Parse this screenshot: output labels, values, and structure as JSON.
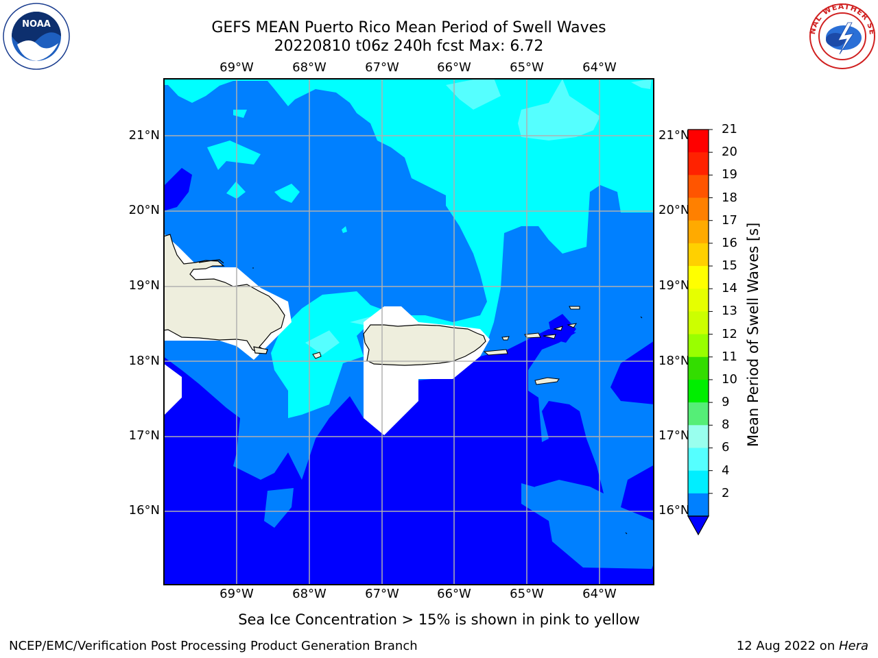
{
  "header": {
    "title_line1": "GEFS MEAN Puerto Rico Mean Period of Swell Waves",
    "title_line2": "20220810 t06z 240h fcst   Max: 6.72"
  },
  "logos": {
    "left": "NOAA",
    "right": "NATIONAL WEATHER SERVICE"
  },
  "map": {
    "lon_labels": [
      "69°W",
      "68°W",
      "67°W",
      "66°W",
      "65°W",
      "64°W"
    ],
    "lat_labels": [
      "21°N",
      "20°N",
      "19°N",
      "18°N",
      "17°N",
      "16°N"
    ]
  },
  "colorbar": {
    "title": "Mean Period of Swell Waves [s]",
    "labels": [
      "21",
      "20",
      "19",
      "18",
      "17",
      "16",
      "15",
      "14",
      "13",
      "12",
      "11",
      "10",
      "9",
      "8",
      "6",
      "4",
      "2"
    ],
    "colors": [
      "#ff0000",
      "#ff2200",
      "#ff5500",
      "#ff8000",
      "#ffaa00",
      "#ffd000",
      "#ffff00",
      "#e6ff00",
      "#ccff00",
      "#99ff00",
      "#33dd00",
      "#00ee00",
      "#55ee77",
      "#99ffee",
      "#55ffff",
      "#00eeff",
      "#0080ff"
    ],
    "extend_color": "#0000ff"
  },
  "legend_note": "Sea Ice Concentration > 15% is shown in pink to yellow",
  "footer": {
    "left": "NCEP/EMC/Verification Post Processing Product Generation Branch",
    "date": "12 Aug 2022 on ",
    "host": "Hera"
  },
  "palette": {
    "lt2": "#0000ff",
    "p2_4": "#0080ff",
    "p4_6": "#00ffff",
    "p6_8": "#55ffff",
    "land": "#eeeedd"
  }
}
